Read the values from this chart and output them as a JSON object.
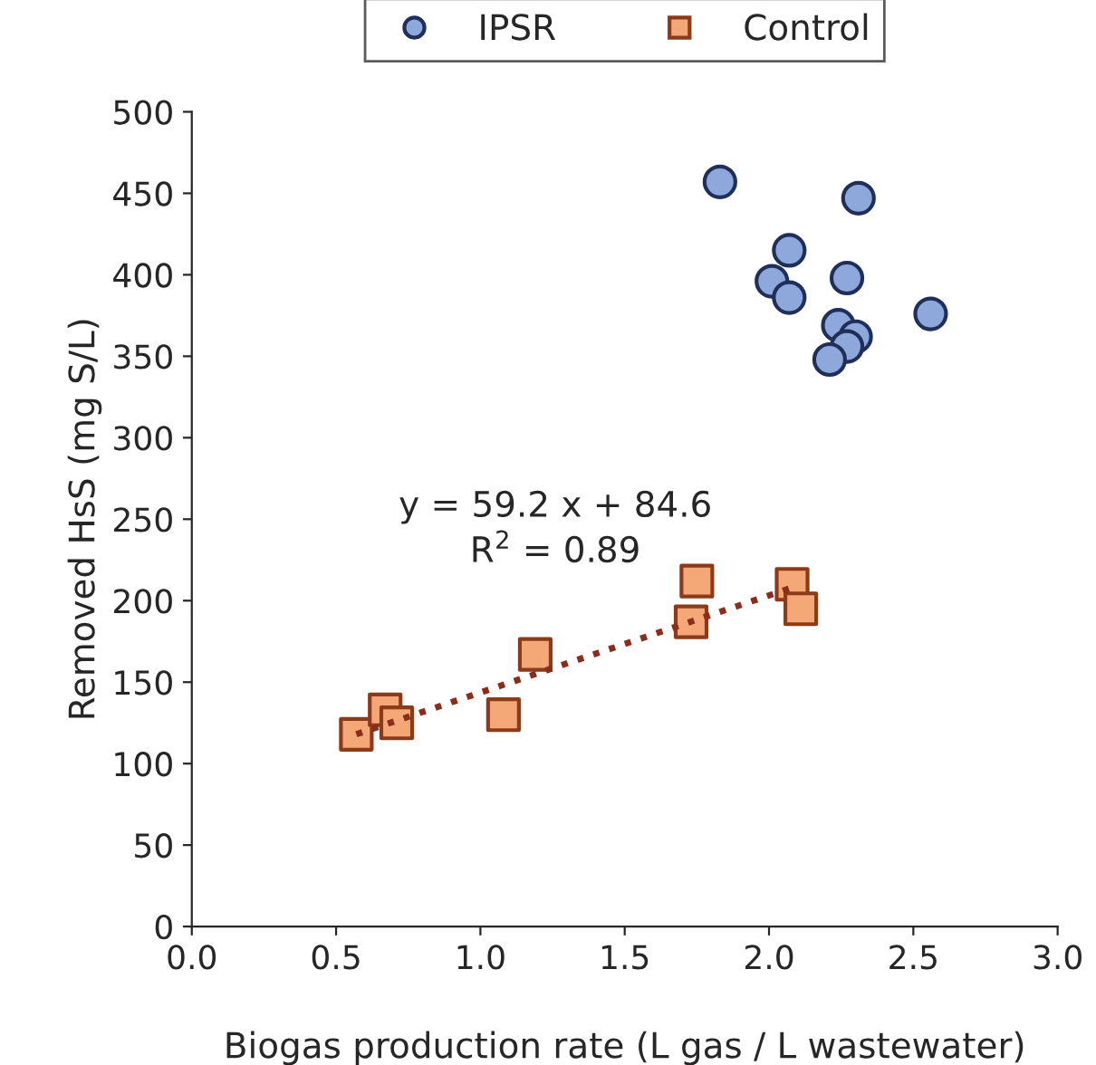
{
  "chart_data": {
    "type": "scatter",
    "xlabel": "Biogas production rate (L gas / L wastewater)",
    "ylabel": "Removed HsS (mg S/L)",
    "xlim": [
      0,
      3
    ],
    "xticks": [
      {
        "value": 0,
        "label": "0.0"
      },
      0.5,
      {
        "value": 1,
        "label": "1.0"
      },
      1.5,
      {
        "value": 2,
        "label": "2.0"
      },
      2.5,
      {
        "value": 3,
        "label": "3.0"
      }
    ],
    "ylim": [
      0,
      500
    ],
    "yticks": [
      0,
      50,
      100,
      150,
      200,
      250,
      300,
      350,
      400,
      450,
      500
    ],
    "grid": false,
    "legend": "top",
    "series": [
      {
        "name": "IPSR",
        "color": "#8fa8db",
        "marker": "circle",
        "x": [
          1.83,
          2.31,
          2.07,
          2.01,
          2.07,
          2.27,
          2.56,
          2.24,
          2.3,
          2.27,
          2.21
        ],
        "values": [
          457,
          447,
          415,
          396,
          386,
          398,
          376,
          369,
          362,
          356,
          348
        ]
      },
      {
        "name": "Control",
        "color": "#f4a878",
        "marker": "square",
        "x": [
          0.57,
          0.67,
          0.71,
          1.08,
          1.19,
          1.75,
          1.73,
          2.08,
          2.11
        ],
        "values": [
          118,
          133,
          125,
          130,
          167,
          212,
          187,
          210,
          195
        ]
      },
      {
        "type": "line",
        "color": "#8b2d1a",
        "line_style": "dotted",
        "marker": "none",
        "x": [
          0.57,
          2.08
        ],
        "values": [
          118,
          208
        ]
      }
    ],
    "annotations": [
      "y = 59.2 x + 84.6",
      "R$^{2}$ = 0.89"
    ]
  }
}
